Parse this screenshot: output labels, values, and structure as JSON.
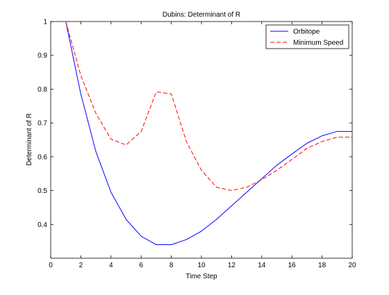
{
  "chart_data": {
    "type": "line",
    "title": "Dubins: Determinant of R",
    "xlabel": "Time Step",
    "ylabel": "Determinant of R",
    "xlim": [
      0,
      20
    ],
    "ylim": [
      0.3,
      1.0
    ],
    "xticks": [
      "0",
      "2",
      "4",
      "6",
      "8",
      "10",
      "12",
      "14",
      "16",
      "18",
      "20"
    ],
    "yticks": [
      "0.4",
      "0.5",
      "0.6",
      "0.7",
      "0.8",
      "0.9",
      "1"
    ],
    "grid": false,
    "legend_position": "top-right",
    "x": [
      1,
      2,
      3,
      4,
      5,
      6,
      7,
      8,
      9,
      10,
      11,
      12,
      13,
      14,
      15,
      16,
      17,
      18,
      19,
      20
    ],
    "series": [
      {
        "name": "Orbitope",
        "color": "#0000ff",
        "style": "solid",
        "values": [
          1.0,
          0.785,
          0.615,
          0.495,
          0.415,
          0.365,
          0.34,
          0.34,
          0.355,
          0.38,
          0.415,
          0.455,
          0.495,
          0.535,
          0.575,
          0.608,
          0.64,
          0.662,
          0.675,
          0.675
        ]
      },
      {
        "name": "Minimum Speed",
        "color": "#ff0000",
        "style": "dashed",
        "values": [
          1.0,
          0.84,
          0.728,
          0.652,
          0.635,
          0.675,
          0.792,
          0.786,
          0.645,
          0.56,
          0.51,
          0.5,
          0.51,
          0.532,
          0.56,
          0.592,
          0.625,
          0.645,
          0.658,
          0.658
        ]
      }
    ]
  }
}
